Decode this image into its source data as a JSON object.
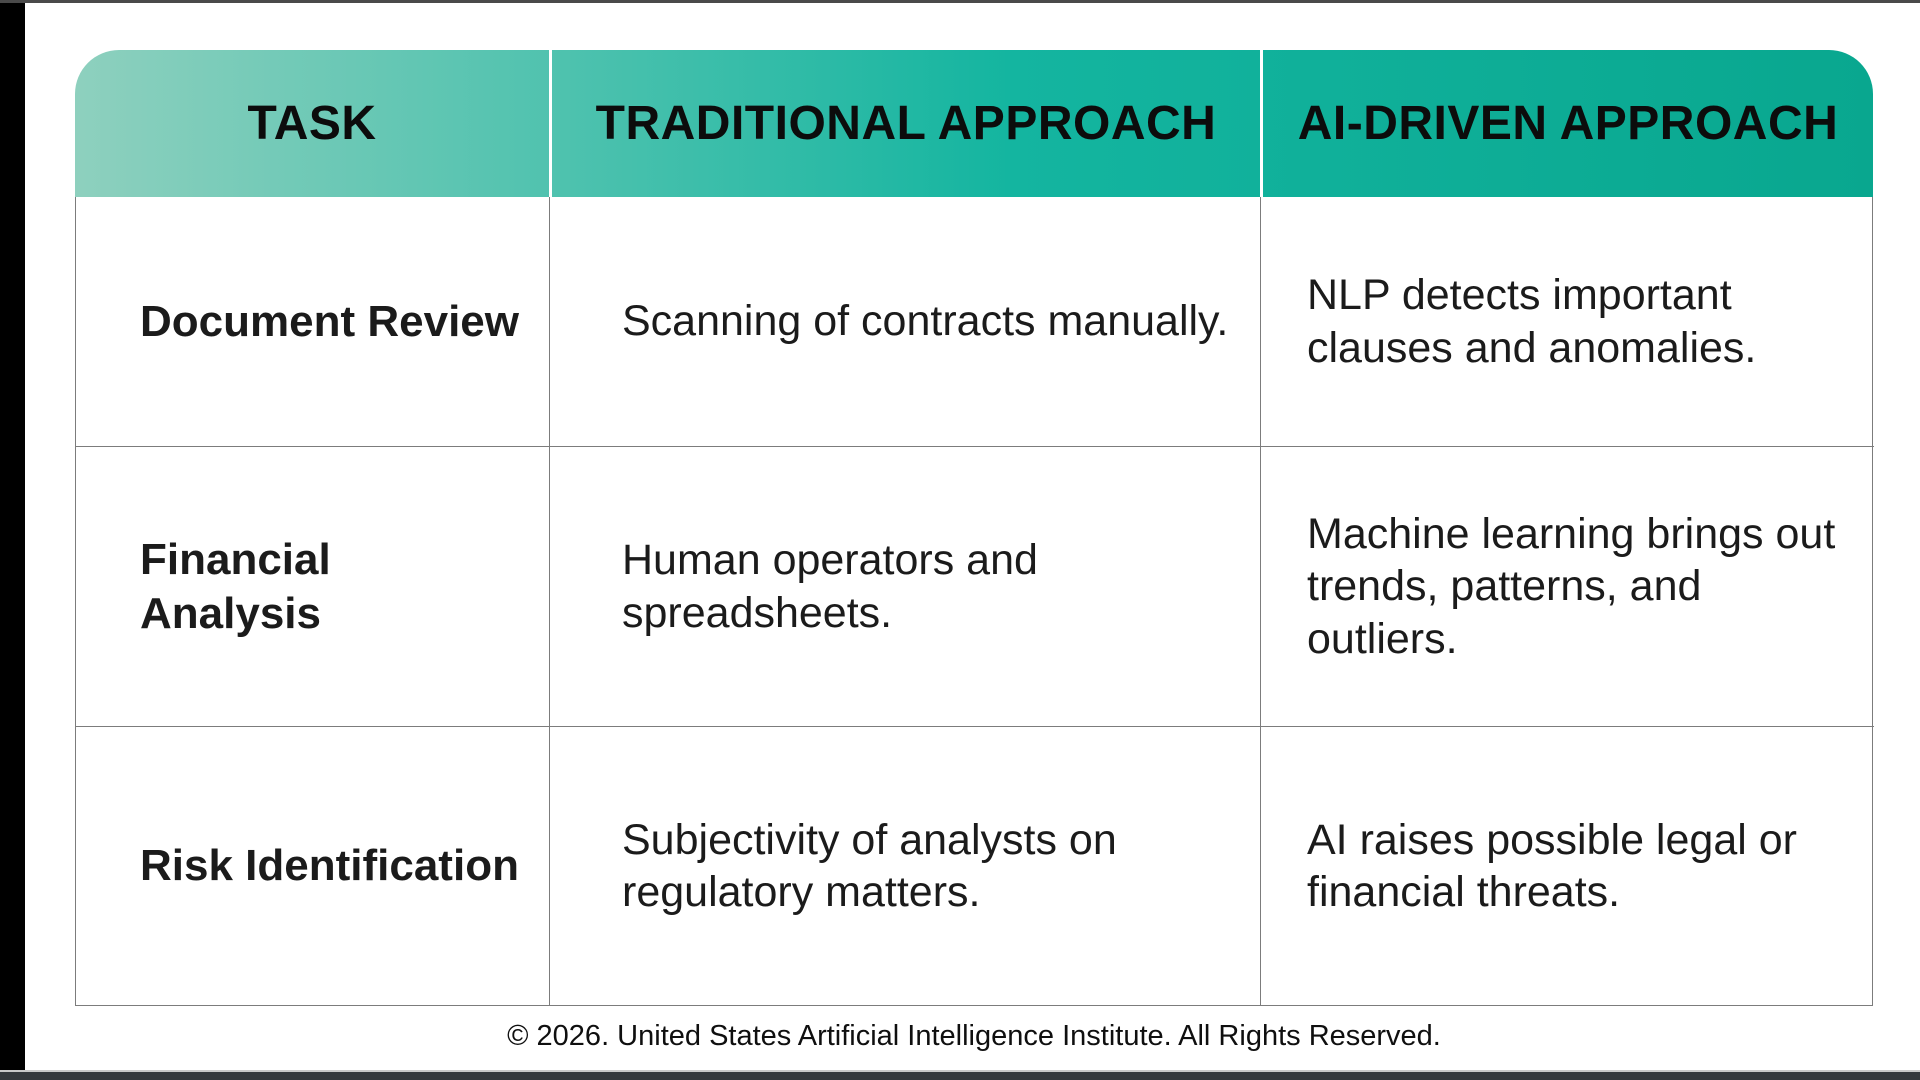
{
  "colors": {
    "gradient_left": "#8ed0be",
    "gradient_mid": "#14b5a0",
    "gradient_right": "#09a78f",
    "header_text": "#0c0c0c",
    "grid_line": "#7c7c7c"
  },
  "table": {
    "columns": [
      "TASK",
      "TRADITIONAL APPROACH",
      "AI-DRIVEN APPROACH"
    ],
    "rows": [
      {
        "task": "Document Review",
        "traditional": "Scanning of contracts manually.",
        "ai": "NLP detects important\nclauses and anomalies."
      },
      {
        "task": "Financial Analysis",
        "traditional": "Human operators and spreadsheets.",
        "ai": "Machine learning brings out\ntrends, patterns, and outliers."
      },
      {
        "task": "Risk Identification",
        "traditional": "Subjectivity of analysts on\nregulatory matters.",
        "ai": "AI raises possible legal or\nfinancial threats."
      }
    ]
  },
  "footer": {
    "copyright": "© 2026. United States Artificial Intelligence Institute. All Rights Reserved."
  }
}
